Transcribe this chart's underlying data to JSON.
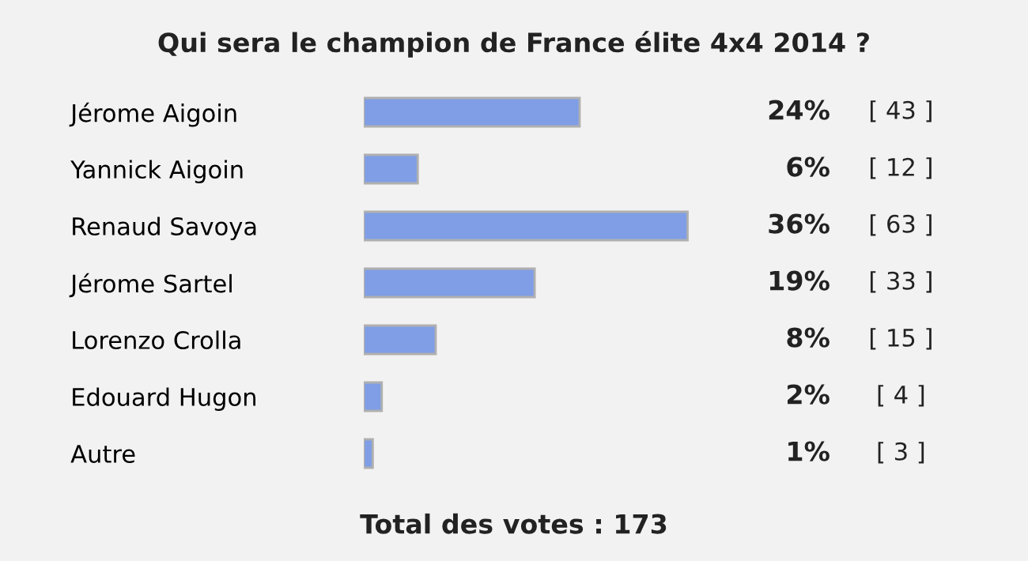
{
  "chart_data": {
    "type": "bar",
    "orientation": "horizontal",
    "title": "Qui sera le champion de France élite 4x4 2014 ?",
    "categories": [
      "Jérome Aigoin",
      "Yannick Aigoin",
      "Renaud Savoya",
      "Jérome Sartel",
      "Lorenzo Crolla",
      "Edouard Hugon",
      "Autre"
    ],
    "values": [
      24,
      6,
      36,
      19,
      8,
      2,
      1
    ],
    "value_labels": [
      "24%",
      "6%",
      "36%",
      "19%",
      "8%",
      "2%",
      "1%"
    ],
    "color": "#7f9ee6",
    "tick_labels": "y",
    "annotations": [
      "[ 43 ]",
      "[ 12 ]",
      "[ 63 ]",
      "[ 33 ]",
      "[ 15 ]",
      "[ 4 ]",
      "[ 3 ]",
      "Total des votes : 173"
    ]
  }
}
